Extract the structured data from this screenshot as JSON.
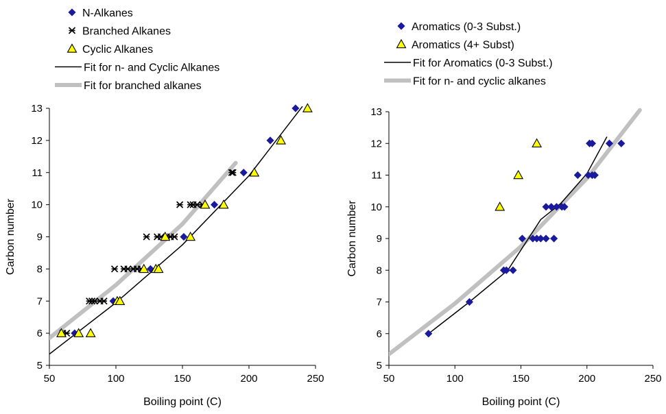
{
  "chart_data": [
    {
      "type": "scatter",
      "xlabel": "Boiling point (C)",
      "ylabel": "Carbon number",
      "xlim": [
        50,
        250
      ],
      "ylim": [
        5,
        13
      ],
      "xticks": [
        "50",
        "100",
        "150",
        "200",
        "250"
      ],
      "yticks": [
        "5",
        "6",
        "7",
        "8",
        "9",
        "10",
        "11",
        "12",
        "13"
      ],
      "grid": false,
      "legend": "top-left",
      "series": [
        {
          "name": "N-Alkanes",
          "marker": "diamond",
          "color": "#1a1a9c",
          "x": [
            69,
            98,
            126,
            151,
            174,
            196,
            216,
            235
          ],
          "y": [
            6,
            7,
            8,
            9,
            10,
            11,
            12,
            13
          ]
        },
        {
          "name": "Branched Alkanes",
          "marker": "asterisk",
          "color": "#000000",
          "x": [
            60,
            63,
            80,
            82,
            84,
            88,
            91,
            99,
            106,
            109,
            113,
            116,
            119,
            123,
            131,
            134,
            138,
            141,
            144,
            148,
            156,
            158,
            161,
            165,
            187,
            188
          ],
          "y": [
            6,
            6,
            7,
            7,
            7,
            7,
            7,
            8,
            8,
            8,
            8,
            8,
            8,
            9,
            9,
            9,
            9,
            9,
            9,
            10,
            10,
            10,
            10,
            10,
            11,
            11
          ]
        },
        {
          "name": "Cyclic Alkanes",
          "marker": "triangle",
          "color": "#ffff00",
          "x": [
            59,
            72,
            81,
            101,
            103,
            121,
            130,
            132,
            137,
            156,
            167,
            181,
            204,
            224,
            244
          ],
          "y": [
            6,
            6,
            6,
            7,
            7,
            8,
            8,
            8,
            9,
            9,
            10,
            10,
            11,
            12,
            13
          ]
        },
        {
          "name": "Fit  for n- and Cyclic Alkanes",
          "type": "line",
          "color": "#000000",
          "x": [
            50,
            100,
            150,
            200,
            240
          ],
          "y": [
            5.35,
            6.95,
            8.75,
            10.9,
            13.05
          ]
        },
        {
          "name": "Fit for branched alkanes",
          "type": "line",
          "color": "#c0c0c0",
          "x": [
            50,
            100,
            150,
            190
          ],
          "y": [
            5.85,
            7.5,
            9.4,
            11.3
          ]
        }
      ]
    },
    {
      "type": "scatter",
      "xlabel": "Boiling point (C)",
      "ylabel": "Carbon number",
      "xlim": [
        50,
        250
      ],
      "ylim": [
        5,
        13
      ],
      "xticks": [
        "50",
        "100",
        "150",
        "200",
        "250"
      ],
      "yticks": [
        "5",
        "6",
        "7",
        "8",
        "9",
        "10",
        "11",
        "12",
        "13"
      ],
      "grid": false,
      "legend": "top-left",
      "series": [
        {
          "name": "Aromatics (0-3 Subst.)",
          "marker": "diamond",
          "color": "#1a1a9c",
          "x": [
            80,
            111,
            137,
            139,
            144,
            151,
            159,
            162,
            165,
            169,
            175,
            169,
            173,
            177,
            181,
            183,
            193,
            201,
            204,
            206,
            202,
            204,
            217,
            226
          ],
          "y": [
            6,
            7,
            8,
            8,
            8,
            9,
            9,
            9,
            9,
            9,
            9,
            10,
            10,
            10,
            10,
            10,
            11,
            11,
            11,
            11,
            12,
            12,
            12,
            12
          ]
        },
        {
          "name": "Aromatics (4+ Subst)",
          "marker": "triangle",
          "color": "#ffff00",
          "x": [
            134,
            148,
            162
          ],
          "y": [
            10,
            11,
            12
          ]
        },
        {
          "name": "Fit for Aromatics (0-3 Subst.)",
          "type": "line",
          "color": "#000000",
          "x": [
            80,
            111,
            140,
            165,
            180,
            200,
            215
          ],
          "y": [
            6,
            7,
            8,
            9.6,
            10.1,
            11.05,
            12.2
          ]
        },
        {
          "name": "Fit for n- and cyclic alkanes",
          "type": "line",
          "color": "#c0c0c0",
          "x": [
            50,
            100,
            150,
            200,
            240
          ],
          "y": [
            5.35,
            6.95,
            8.75,
            10.9,
            13.05
          ]
        }
      ]
    }
  ]
}
